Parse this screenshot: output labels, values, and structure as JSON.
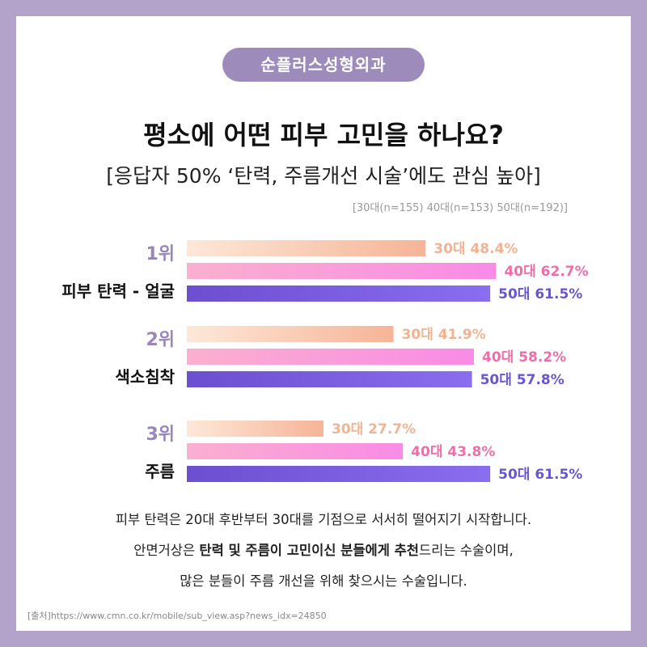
{
  "brand": "순플러스성형외과",
  "title": "평소에 어떤 피부 고민을 하나요?",
  "subtitle": "[응답자 50% ‘탄력, 주름개선 시술’에도 관심 높아]",
  "sample_note": "[30대(n=155)  40대(n=153)  50대(n=192)]",
  "colors": {
    "s30_start": "#fde8d8",
    "s30_end": "#f6b497",
    "s30_text": "#f2b393",
    "s40_start": "#fbb0cf",
    "s40_end": "#f98be6",
    "s40_text": "#ee6fa8",
    "s50_start": "#6b4fcf",
    "s50_end": "#8a6ef0",
    "s50_text": "#6a57d0"
  },
  "chart_data": {
    "type": "bar",
    "orientation": "horizontal",
    "categories": [
      {
        "rank": "1위",
        "label": "피부 탄력 - 얼굴"
      },
      {
        "rank": "2위",
        "label": "색소침착"
      },
      {
        "rank": "3위",
        "label": "주름"
      }
    ],
    "series": [
      {
        "name": "30대",
        "values": [
          48.4,
          41.9,
          27.7
        ],
        "labels": [
          "30대 48.4%",
          "30대 41.9%",
          "30대 27.7%"
        ]
      },
      {
        "name": "40대",
        "values": [
          62.7,
          58.2,
          43.8
        ],
        "labels": [
          "40대 62.7%",
          "40대 58.2%",
          "40대 43.8%"
        ]
      },
      {
        "name": "50대",
        "values": [
          61.5,
          57.8,
          61.5
        ],
        "labels": [
          "50대 61.5%",
          "50대 57.8%",
          "50대 61.5%"
        ]
      }
    ],
    "xlim": [
      0,
      70
    ],
    "grid": false,
    "legend": "none"
  },
  "description": {
    "line1": "피부 탄력은 20대 후반부터 30대를 기점으로 서서히 떨어지기 시작합니다.",
    "line2_pre": "안면거상은 ",
    "line2_bold1": "탄력 및 주름이 고민이신 분들에게 추천",
    "line2_post": "드리는 수술이며,",
    "line3": "많은 분들이 주름 개선을 위해 찾으시는 수술입니다."
  },
  "source": "[출처]https://www.cmn.co.kr/mobile/sub_view.asp?news_idx=24850"
}
